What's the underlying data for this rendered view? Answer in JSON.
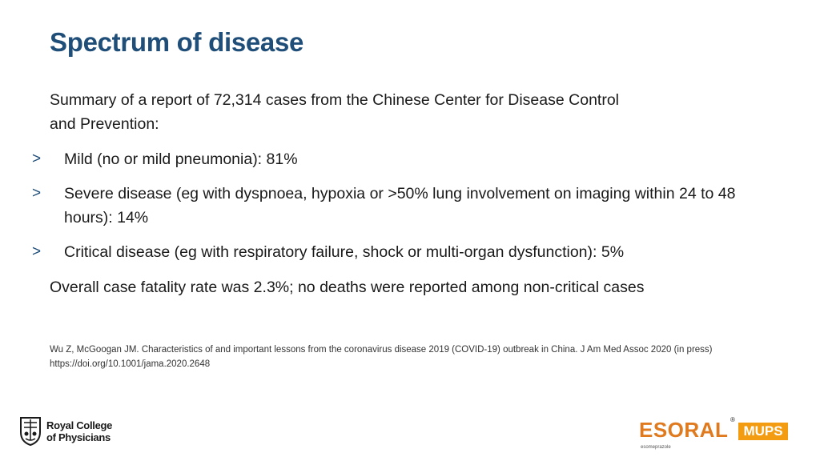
{
  "slide": {
    "title": "Spectrum of disease",
    "intro": "Summary of a report of 72,314 cases from the Chinese Center for Disease Control and Prevention:",
    "bullet_marker": ">",
    "bullets": [
      "Mild (no or mild pneumonia): 81%",
      "Severe disease (eg with dyspnoea, hypoxia or >50% lung involvement on imaging within 24 to 48 hours): 14%",
      "Critical disease (eg with respiratory failure, shock or multi-organ dysfunction): 5%"
    ],
    "summary": "Overall case fatality rate was 2.3%; no deaths were reported among non-critical cases",
    "reference": "Wu Z, McGoogan JM. Characteristics of and important lessons from the coronavirus disease 2019 (COVID-19) outbreak in China. J Am Med Assoc 2020 (in press) https://doi.org/10.1001/jama.2020.2648"
  },
  "logos": {
    "rcp": {
      "line1": "Royal College",
      "line2": "of Physicians",
      "icon": "crest-icon"
    },
    "esoral": {
      "word": "ESORAL",
      "registered": "®",
      "badge": "MUPS",
      "subtext": "esomeprazole"
    }
  },
  "colors": {
    "title": "#1f4e79",
    "bullet_marker": "#1f4e79",
    "esoral_orange": "#e07a1f",
    "mups_badge": "#f39c12"
  }
}
